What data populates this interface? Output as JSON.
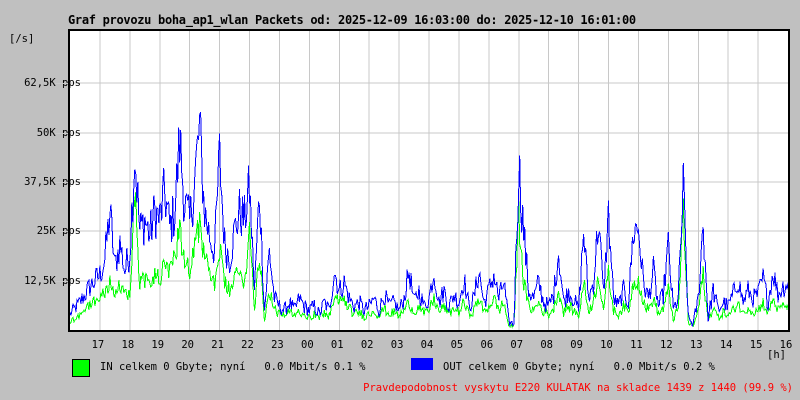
{
  "page": {
    "background": "#c0c0c0",
    "plot_background": "#ffffff",
    "grid_color": "#c8c8c8",
    "frame_color": "#000000"
  },
  "title": "Graf provozu boha_ap1_wlan Packets od: 2025-12-09 16:03:00 do: 2025-12-10 16:01:00",
  "axis": {
    "unit_left": "[/s]",
    "unit_bottom": "[h]",
    "y_ticks": [
      {
        "label": "62,5K pps",
        "value": 62.5
      },
      {
        "label": "50K pps",
        "value": 50
      },
      {
        "label": "37,5K pps",
        "value": 37.5
      },
      {
        "label": "25K pps",
        "value": 25
      },
      {
        "label": "12,5K pps",
        "value": 12.5
      }
    ],
    "x_ticks": [
      "17",
      "18",
      "19",
      "20",
      "21",
      "22",
      "23",
      "00",
      "01",
      "02",
      "03",
      "04",
      "05",
      "06",
      "07",
      "08",
      "09",
      "10",
      "11",
      "12",
      "13",
      "14",
      "15",
      "16"
    ]
  },
  "legend": {
    "in": {
      "label": "IN celkem 0 Gbyte; nyní   0.0 Mbit/s 0.1 %",
      "color": "#00ff00"
    },
    "out": {
      "label": "OUT celkem 0 Gbyte; nyní   0.0 Mbit/s 0.2 %",
      "color": "#0000ff"
    }
  },
  "footer": {
    "text": "Pravdepodobnost vyskytu E220 KULATAK na skladce 1439 z 1440 (99.9 %)",
    "color": "#ff0000"
  },
  "chart_data": {
    "type": "line",
    "title": "Graf provozu boha_ap1_wlan Packets",
    "time_start": "2025-12-09 16:03:00",
    "time_end": "2025-12-10 16:01:00",
    "xlabel": "[h]",
    "ylabel": "[/s] (packets per second)",
    "ylim": [
      0,
      75.8
    ],
    "unit": "Kpps",
    "sample_interval_minutes": 10,
    "y_gridlines": [
      12.5,
      25,
      37.5,
      50,
      62.5
    ],
    "x_hour_gridlines": [
      "17",
      "18",
      "19",
      "20",
      "21",
      "22",
      "23",
      "00",
      "01",
      "02",
      "03",
      "04",
      "05",
      "06",
      "07",
      "08",
      "09",
      "10",
      "11",
      "12",
      "13",
      "14",
      "15",
      "16"
    ],
    "series": [
      {
        "name": "OUT",
        "color": "#0000ff",
        "values": [
          4,
          5.5,
          7,
          9,
          11,
          12.5,
          14,
          18,
          30,
          16,
          22,
          15,
          20,
          45,
          25,
          28,
          24,
          30,
          28,
          35,
          26,
          30,
          48,
          32,
          27,
          38,
          51,
          30,
          24,
          20,
          44,
          22,
          18,
          25,
          30,
          28,
          36,
          10,
          35,
          5,
          20,
          8,
          6,
          5,
          7,
          5,
          8,
          6,
          5,
          6,
          4,
          7,
          5,
          15,
          10,
          12,
          8,
          6,
          7,
          5,
          6,
          8,
          5,
          9,
          6,
          7,
          5,
          8,
          15,
          7,
          10,
          6,
          8,
          15,
          7,
          10,
          6,
          9,
          7,
          13,
          6,
          8,
          15,
          7,
          10,
          14,
          8,
          12,
          2,
          1.5,
          42,
          25,
          10,
          8,
          12,
          7,
          6,
          9,
          20,
          7,
          10,
          8,
          5,
          25,
          8,
          12,
          28,
          9,
          29,
          8,
          6,
          10,
          7,
          25,
          26,
          12,
          8,
          15,
          6,
          9,
          21,
          5,
          8,
          36,
          3,
          1.5,
          8,
          27,
          3,
          10,
          5,
          7,
          6,
          9,
          13,
          7,
          10,
          8,
          9,
          13,
          7,
          15,
          9,
          11,
          12
        ]
      },
      {
        "name": "IN",
        "color": "#00ff00",
        "values": [
          2,
          3,
          4,
          5,
          6.5,
          7.5,
          8,
          10,
          12,
          9,
          11,
          9,
          10,
          35,
          12,
          13,
          11,
          14,
          13,
          16,
          14,
          18,
          27,
          17,
          16,
          22,
          27,
          18,
          14,
          12,
          20,
          12,
          10,
          13,
          14,
          12.5,
          25,
          6,
          20,
          3,
          10,
          5,
          4,
          3.5,
          4.5,
          3.5,
          5,
          4,
          3.5,
          4,
          3,
          4.5,
          3.5,
          8,
          7,
          8,
          5.5,
          4,
          4.5,
          3.5,
          4,
          5,
          3.5,
          5.5,
          4,
          4.5,
          3.5,
          5,
          7,
          4.5,
          6,
          4,
          5,
          8,
          4.5,
          6,
          4,
          5.5,
          4.5,
          7,
          4,
          5,
          8,
          4.5,
          6,
          8,
          5,
          7,
          1,
          0.8,
          30,
          12,
          6,
          5,
          7,
          4.5,
          4,
          5.5,
          10,
          4.5,
          6,
          5,
          3.5,
          12,
          5,
          7,
          14,
          5.5,
          14,
          5,
          4,
          6,
          4.5,
          12,
          13,
          7,
          5,
          8,
          4,
          5.5,
          10,
          3,
          5,
          30,
          2,
          1,
          5,
          14,
          2,
          6,
          3,
          4.5,
          3.5,
          5,
          7,
          4,
          6,
          4.5,
          5,
          7,
          4,
          8,
          5,
          6,
          6.5
        ]
      }
    ],
    "noise": {
      "OUT": {
        "base": 0.8,
        "scale": 0.2
      },
      "IN": {
        "base": 0.5,
        "scale": 0.16
      }
    },
    "legend_position": "bottom"
  }
}
